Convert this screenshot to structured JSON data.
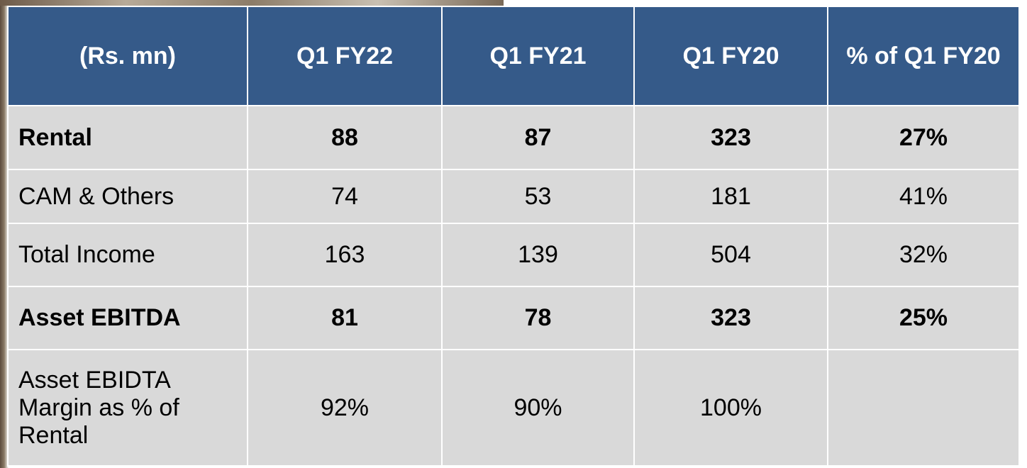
{
  "table": {
    "header": [
      "(Rs. mn)",
      "Q1 FY22",
      "Q1 FY21",
      "Q1 FY20",
      "% of Q1 FY20"
    ],
    "rows": [
      {
        "label": "Rental",
        "bold": true,
        "cells": [
          "88",
          "87",
          "323",
          "27%"
        ]
      },
      {
        "label": "CAM & Others",
        "bold": false,
        "cells": [
          "74",
          "53",
          "181",
          "41%"
        ]
      },
      {
        "label": "Total Income",
        "bold": false,
        "cells": [
          "163",
          "139",
          "504",
          "32%"
        ]
      },
      {
        "label": "Asset EBITDA",
        "bold": true,
        "cells": [
          "81",
          "78",
          "323",
          "25%"
        ]
      },
      {
        "label": "Asset EBIDTA Margin as % of Rental",
        "bold": false,
        "cells": [
          "92%",
          "90%",
          "100%"
        ]
      }
    ]
  }
}
